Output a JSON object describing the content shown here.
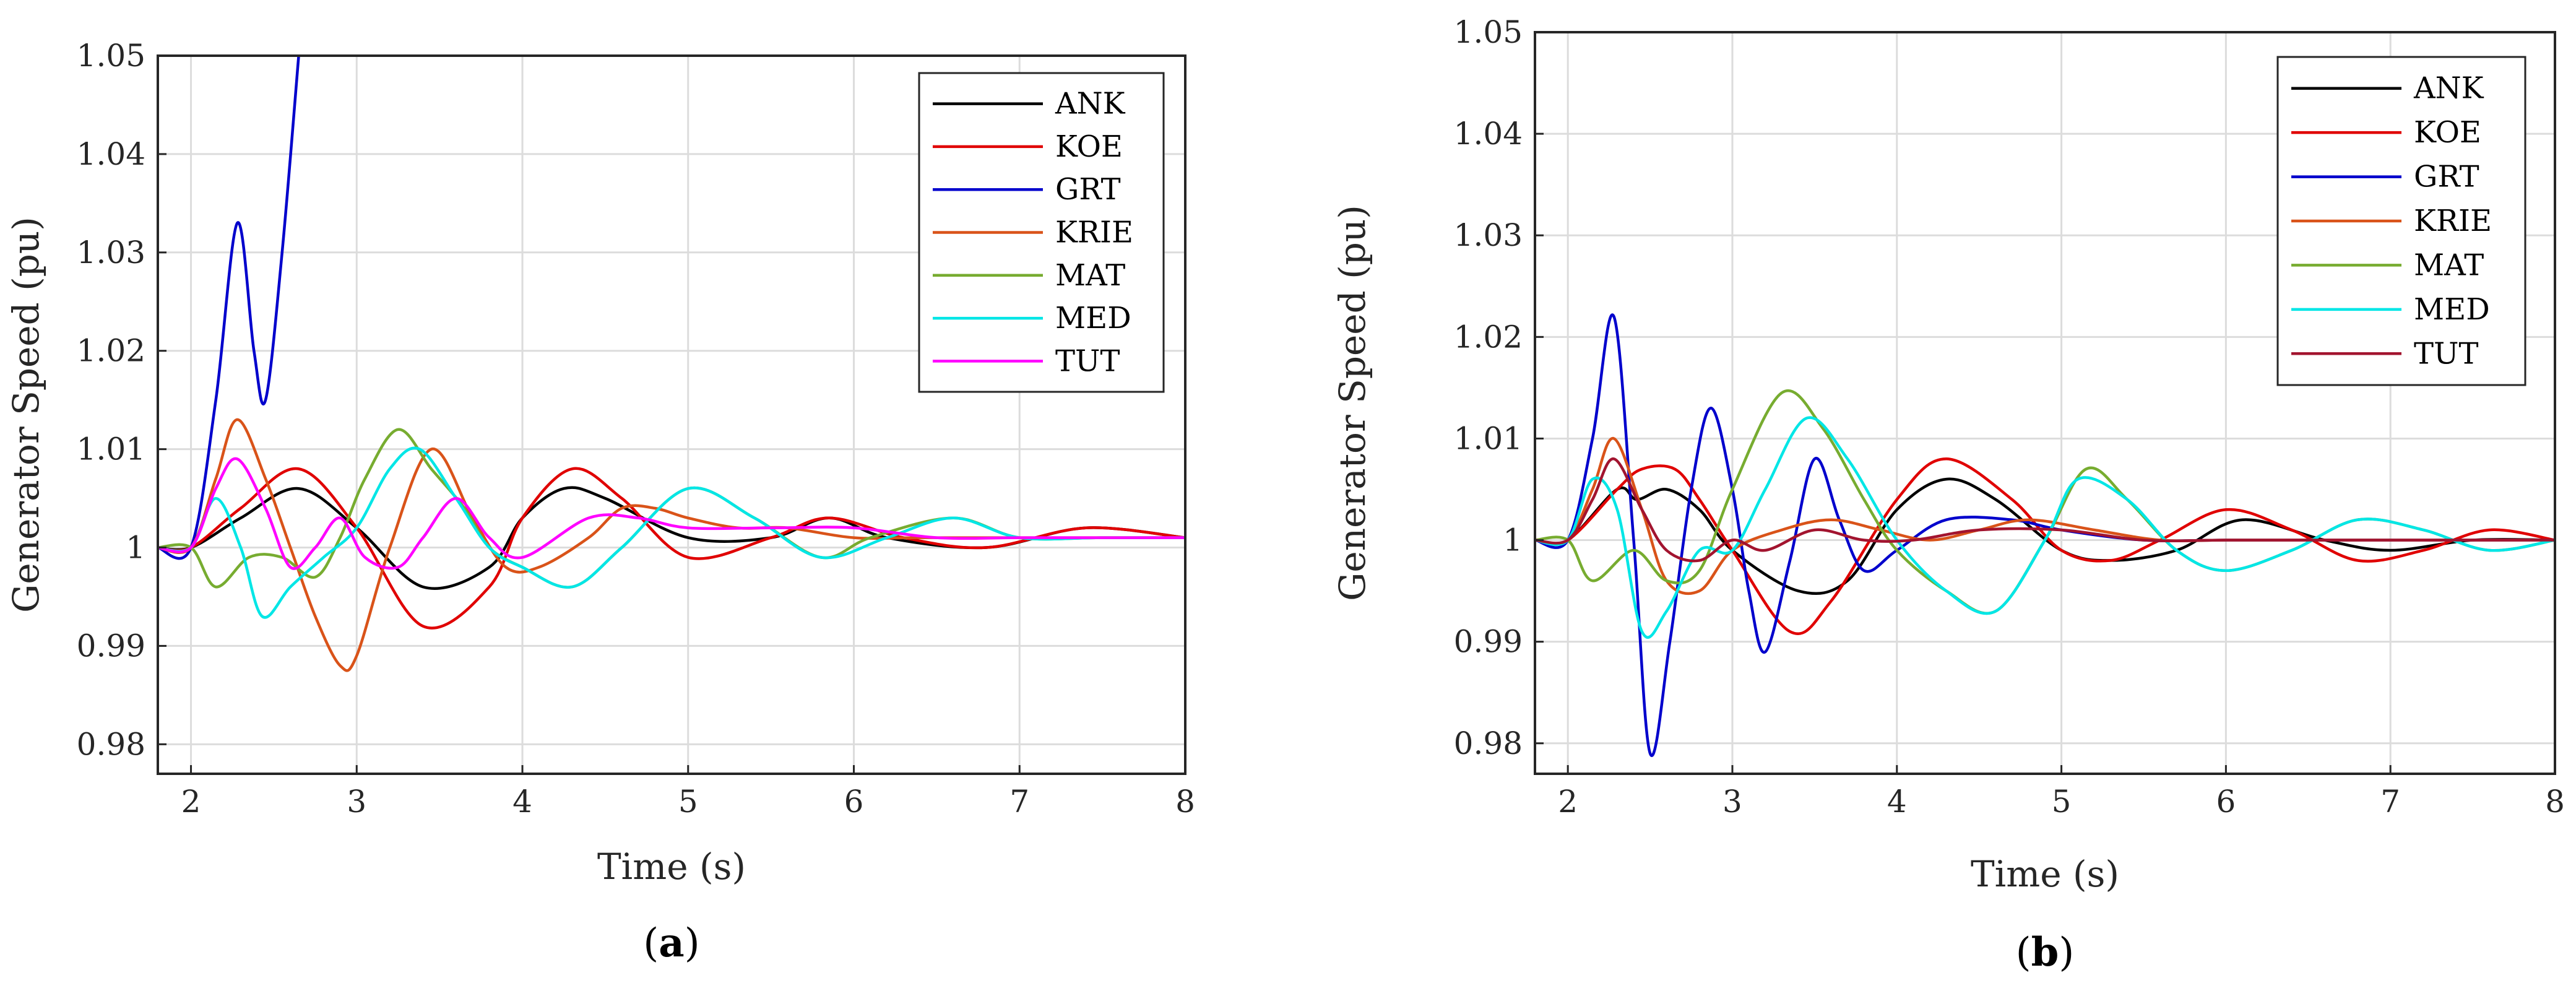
{
  "chart_data": [
    {
      "type": "line",
      "caption": "(a)",
      "xlabel": "Time (s)",
      "ylabel": "Generator Speed (pu)",
      "xlim": [
        1.8,
        8
      ],
      "ylim": [
        0.977,
        1.05
      ],
      "xticks": [
        2,
        3,
        4,
        5,
        6,
        7,
        8
      ],
      "yticks": [
        0.98,
        0.99,
        1,
        1.01,
        1.02,
        1.03,
        1.04,
        1.05
      ],
      "xtick_labels": [
        "2",
        "3",
        "4",
        "5",
        "6",
        "7",
        "8"
      ],
      "ytick_labels": [
        "0.98",
        "0.99",
        "1",
        "1.01",
        "1.02",
        "1.03",
        "1.04",
        "1.05"
      ],
      "grid": true,
      "legend_position": "top-right",
      "series": [
        {
          "name": "ANK",
          "color": "#000000",
          "x": [
            1.8,
            2.0,
            2.3,
            2.65,
            3.0,
            3.4,
            3.8,
            4.0,
            4.25,
            4.5,
            5.0,
            5.5,
            5.85,
            6.2,
            6.8,
            7.4,
            8.0
          ],
          "y": [
            1.0,
            1.0,
            1.003,
            1.006,
            1.002,
            0.996,
            0.998,
            1.003,
            1.006,
            1.005,
            1.001,
            1.001,
            1.003,
            1.001,
            1.0,
            1.002,
            1.001
          ]
        },
        {
          "name": "KOE",
          "color": "#e00000",
          "x": [
            1.8,
            2.0,
            2.3,
            2.65,
            3.0,
            3.4,
            3.8,
            4.0,
            4.3,
            4.6,
            5.0,
            5.5,
            5.85,
            6.3,
            6.8,
            7.4,
            8.0
          ],
          "y": [
            1.0,
            1.0,
            1.004,
            1.008,
            1.002,
            0.992,
            0.996,
            1.003,
            1.008,
            1.005,
            0.999,
            1.001,
            1.003,
            1.001,
            1.0,
            1.002,
            1.001
          ]
        },
        {
          "name": "GRT",
          "color": "#0000cc",
          "x": [
            1.8,
            2.0,
            2.15,
            2.28,
            2.38,
            2.45,
            2.55,
            2.65
          ],
          "y": [
            1.0,
            1.0,
            1.015,
            1.033,
            1.02,
            1.015,
            1.03,
            1.05
          ]
        },
        {
          "name": "KRIE",
          "color": "#d95319",
          "x": [
            1.8,
            2.0,
            2.15,
            2.28,
            2.45,
            2.6,
            2.75,
            2.9,
            3.0,
            3.2,
            3.45,
            3.7,
            3.9,
            4.1,
            4.4,
            4.6,
            4.8,
            5.0,
            5.3,
            5.6,
            6.0,
            6.4,
            7.0,
            7.5,
            8.0
          ],
          "y": [
            1.0,
            1.0,
            1.007,
            1.013,
            1.007,
            1.0,
            0.993,
            0.988,
            0.989,
            1.0,
            1.01,
            1.003,
            0.998,
            0.998,
            1.001,
            1.004,
            1.004,
            1.003,
            1.002,
            1.002,
            1.001,
            1.001,
            1.001,
            1.001,
            1.001
          ]
        },
        {
          "name": "MAT",
          "color": "#77ac30",
          "x": [
            1.8,
            2.0,
            2.15,
            2.35,
            2.55,
            2.75,
            2.9,
            3.05,
            3.25,
            3.45,
            3.65,
            3.8,
            4.0,
            4.3,
            4.6,
            5.0,
            5.4,
            5.8,
            6.1,
            6.6,
            7.0,
            7.5,
            8.0
          ],
          "y": [
            1.0,
            1.0,
            0.996,
            0.999,
            0.999,
            0.997,
            1.001,
            1.007,
            1.012,
            1.008,
            1.004,
            1.0,
            0.998,
            0.996,
            1.0,
            1.006,
            1.003,
            0.999,
            1.001,
            1.003,
            1.001,
            1.001,
            1.001
          ]
        },
        {
          "name": "MED",
          "color": "#00e6e6",
          "x": [
            1.8,
            2.0,
            2.15,
            2.3,
            2.43,
            2.6,
            2.8,
            3.0,
            3.2,
            3.38,
            3.6,
            3.8,
            4.0,
            4.3,
            4.6,
            5.0,
            5.4,
            5.8,
            6.2,
            6.6,
            7.0,
            7.5,
            8.0
          ],
          "y": [
            1.0,
            1.0,
            1.005,
            1.0,
            0.993,
            0.996,
            0.999,
            1.002,
            1.008,
            1.01,
            1.005,
            1.0,
            0.998,
            0.996,
            1.0,
            1.006,
            1.003,
            0.999,
            1.001,
            1.003,
            1.001,
            1.001,
            1.001
          ]
        },
        {
          "name": "TUT",
          "color": "#ff00ff",
          "x": [
            1.8,
            2.0,
            2.15,
            2.28,
            2.45,
            2.6,
            2.75,
            2.9,
            3.05,
            3.25,
            3.4,
            3.6,
            3.8,
            4.0,
            4.4,
            4.7,
            5.0,
            5.5,
            6.0,
            6.5,
            7.0,
            7.5,
            8.0
          ],
          "y": [
            1.0,
            1.0,
            1.006,
            1.009,
            1.004,
            0.998,
            1.0,
            1.003,
            0.999,
            0.998,
            1.001,
            1.005,
            1.001,
            0.999,
            1.003,
            1.003,
            1.002,
            1.002,
            1.002,
            1.001,
            1.001,
            1.001,
            1.001
          ]
        }
      ]
    },
    {
      "type": "line",
      "caption": "(b)",
      "xlabel": "Time (s)",
      "ylabel": "Generator Speed (pu)",
      "xlim": [
        1.8,
        8
      ],
      "ylim": [
        0.977,
        1.05
      ],
      "xticks": [
        2,
        3,
        4,
        5,
        6,
        7,
        8
      ],
      "yticks": [
        0.98,
        0.99,
        1,
        1.01,
        1.02,
        1.03,
        1.04,
        1.05
      ],
      "xtick_labels": [
        "2",
        "3",
        "4",
        "5",
        "6",
        "7",
        "8"
      ],
      "ytick_labels": [
        "0.98",
        "0.99",
        "1",
        "1.01",
        "1.02",
        "1.03",
        "1.04",
        "1.05"
      ],
      "grid": true,
      "legend_position": "top-right",
      "series": [
        {
          "name": "ANK",
          "color": "#000000",
          "x": [
            1.8,
            2.0,
            2.3,
            2.42,
            2.6,
            2.8,
            3.0,
            3.4,
            3.7,
            4.0,
            4.3,
            4.6,
            5.0,
            5.3,
            5.7,
            6.1,
            6.6,
            7.0,
            7.5,
            8.0
          ],
          "y": [
            1.0,
            1.0,
            1.005,
            1.004,
            1.005,
            1.003,
            0.999,
            0.995,
            0.996,
            1.003,
            1.006,
            1.004,
            0.999,
            0.998,
            0.999,
            1.002,
            1.0,
            0.999,
            1.0,
            1.0
          ]
        },
        {
          "name": "KOE",
          "color": "#e00000",
          "x": [
            1.8,
            2.0,
            2.3,
            2.45,
            2.65,
            2.8,
            3.0,
            3.35,
            3.6,
            4.0,
            4.3,
            4.7,
            5.0,
            5.3,
            5.6,
            6.0,
            6.4,
            6.8,
            7.2,
            7.6,
            8.0
          ],
          "y": [
            1.0,
            1.0,
            1.005,
            1.007,
            1.007,
            1.004,
            0.999,
            0.991,
            0.994,
            1.004,
            1.008,
            1.004,
            0.999,
            0.998,
            1.0,
            1.003,
            1.001,
            0.998,
            0.999,
            1.001,
            1.0
          ]
        },
        {
          "name": "GRT",
          "color": "#0000cc",
          "x": [
            1.8,
            2.0,
            2.15,
            2.28,
            2.4,
            2.5,
            2.62,
            2.75,
            2.87,
            3.0,
            3.1,
            3.2,
            3.35,
            3.5,
            3.65,
            3.8,
            4.0,
            4.3,
            4.7,
            5.0,
            5.5,
            6.0,
            6.5,
            7.0,
            8.0
          ],
          "y": [
            1.0,
            1.0,
            1.01,
            1.022,
            1.0,
            0.979,
            0.99,
            1.005,
            1.013,
            1.005,
            0.995,
            0.989,
            0.998,
            1.008,
            1.002,
            0.997,
            0.999,
            1.002,
            1.002,
            1.001,
            1.0,
            1.0,
            1.0,
            1.0,
            1.0
          ]
        },
        {
          "name": "KRIE",
          "color": "#d95319",
          "x": [
            1.8,
            2.0,
            2.15,
            2.28,
            2.45,
            2.6,
            2.8,
            3.0,
            3.3,
            3.6,
            3.9,
            4.2,
            4.5,
            4.8,
            5.2,
            5.6,
            6.0,
            6.5,
            7.0,
            7.5,
            8.0
          ],
          "y": [
            1.0,
            1.0,
            1.005,
            1.01,
            1.003,
            0.996,
            0.995,
            0.999,
            1.001,
            1.002,
            1.001,
            1.0,
            1.001,
            1.002,
            1.001,
            1.0,
            1.0,
            1.0,
            1.0,
            1.0,
            1.0
          ]
        },
        {
          "name": "MAT",
          "color": "#77ac30",
          "x": [
            1.8,
            2.0,
            2.15,
            2.4,
            2.6,
            2.8,
            3.0,
            3.3,
            3.55,
            3.8,
            4.0,
            4.3,
            4.6,
            4.9,
            5.15,
            5.4,
            5.7,
            6.0,
            6.4,
            6.8,
            7.2,
            7.6,
            8.0
          ],
          "y": [
            1.0,
            1.0,
            0.996,
            0.999,
            0.996,
            0.997,
            1.005,
            1.0145,
            1.011,
            1.004,
            0.999,
            0.995,
            0.993,
            1.0,
            1.007,
            1.004,
            0.999,
            0.997,
            0.999,
            1.002,
            1.001,
            0.999,
            1.0
          ]
        },
        {
          "name": "MED",
          "color": "#00e6e6",
          "x": [
            1.8,
            2.0,
            2.15,
            2.3,
            2.45,
            2.6,
            2.8,
            3.0,
            3.2,
            3.45,
            3.7,
            4.0,
            4.3,
            4.6,
            4.9,
            5.1,
            5.4,
            5.7,
            6.0,
            6.4,
            6.8,
            7.2,
            7.6,
            8.0
          ],
          "y": [
            1.0,
            1.0,
            1.006,
            1.003,
            0.991,
            0.993,
            0.999,
            0.999,
            1.005,
            1.012,
            1.008,
            1.0,
            0.995,
            0.993,
            1.0,
            1.006,
            1.004,
            0.999,
            0.997,
            0.999,
            1.002,
            1.001,
            0.999,
            1.0
          ]
        },
        {
          "name": "TUT",
          "color": "#a2142f",
          "x": [
            1.8,
            2.0,
            2.15,
            2.28,
            2.45,
            2.6,
            2.8,
            3.0,
            3.2,
            3.5,
            3.8,
            4.1,
            4.5,
            5.0,
            5.5,
            6.0,
            6.5,
            7.0,
            7.5,
            8.0
          ],
          "y": [
            1.0,
            1.0,
            1.004,
            1.008,
            1.003,
            0.999,
            0.998,
            1.0,
            0.999,
            1.001,
            1.0,
            1.0,
            1.001,
            1.001,
            1.0,
            1.0,
            1.0,
            1.0,
            1.0,
            1.0
          ]
        }
      ]
    }
  ]
}
